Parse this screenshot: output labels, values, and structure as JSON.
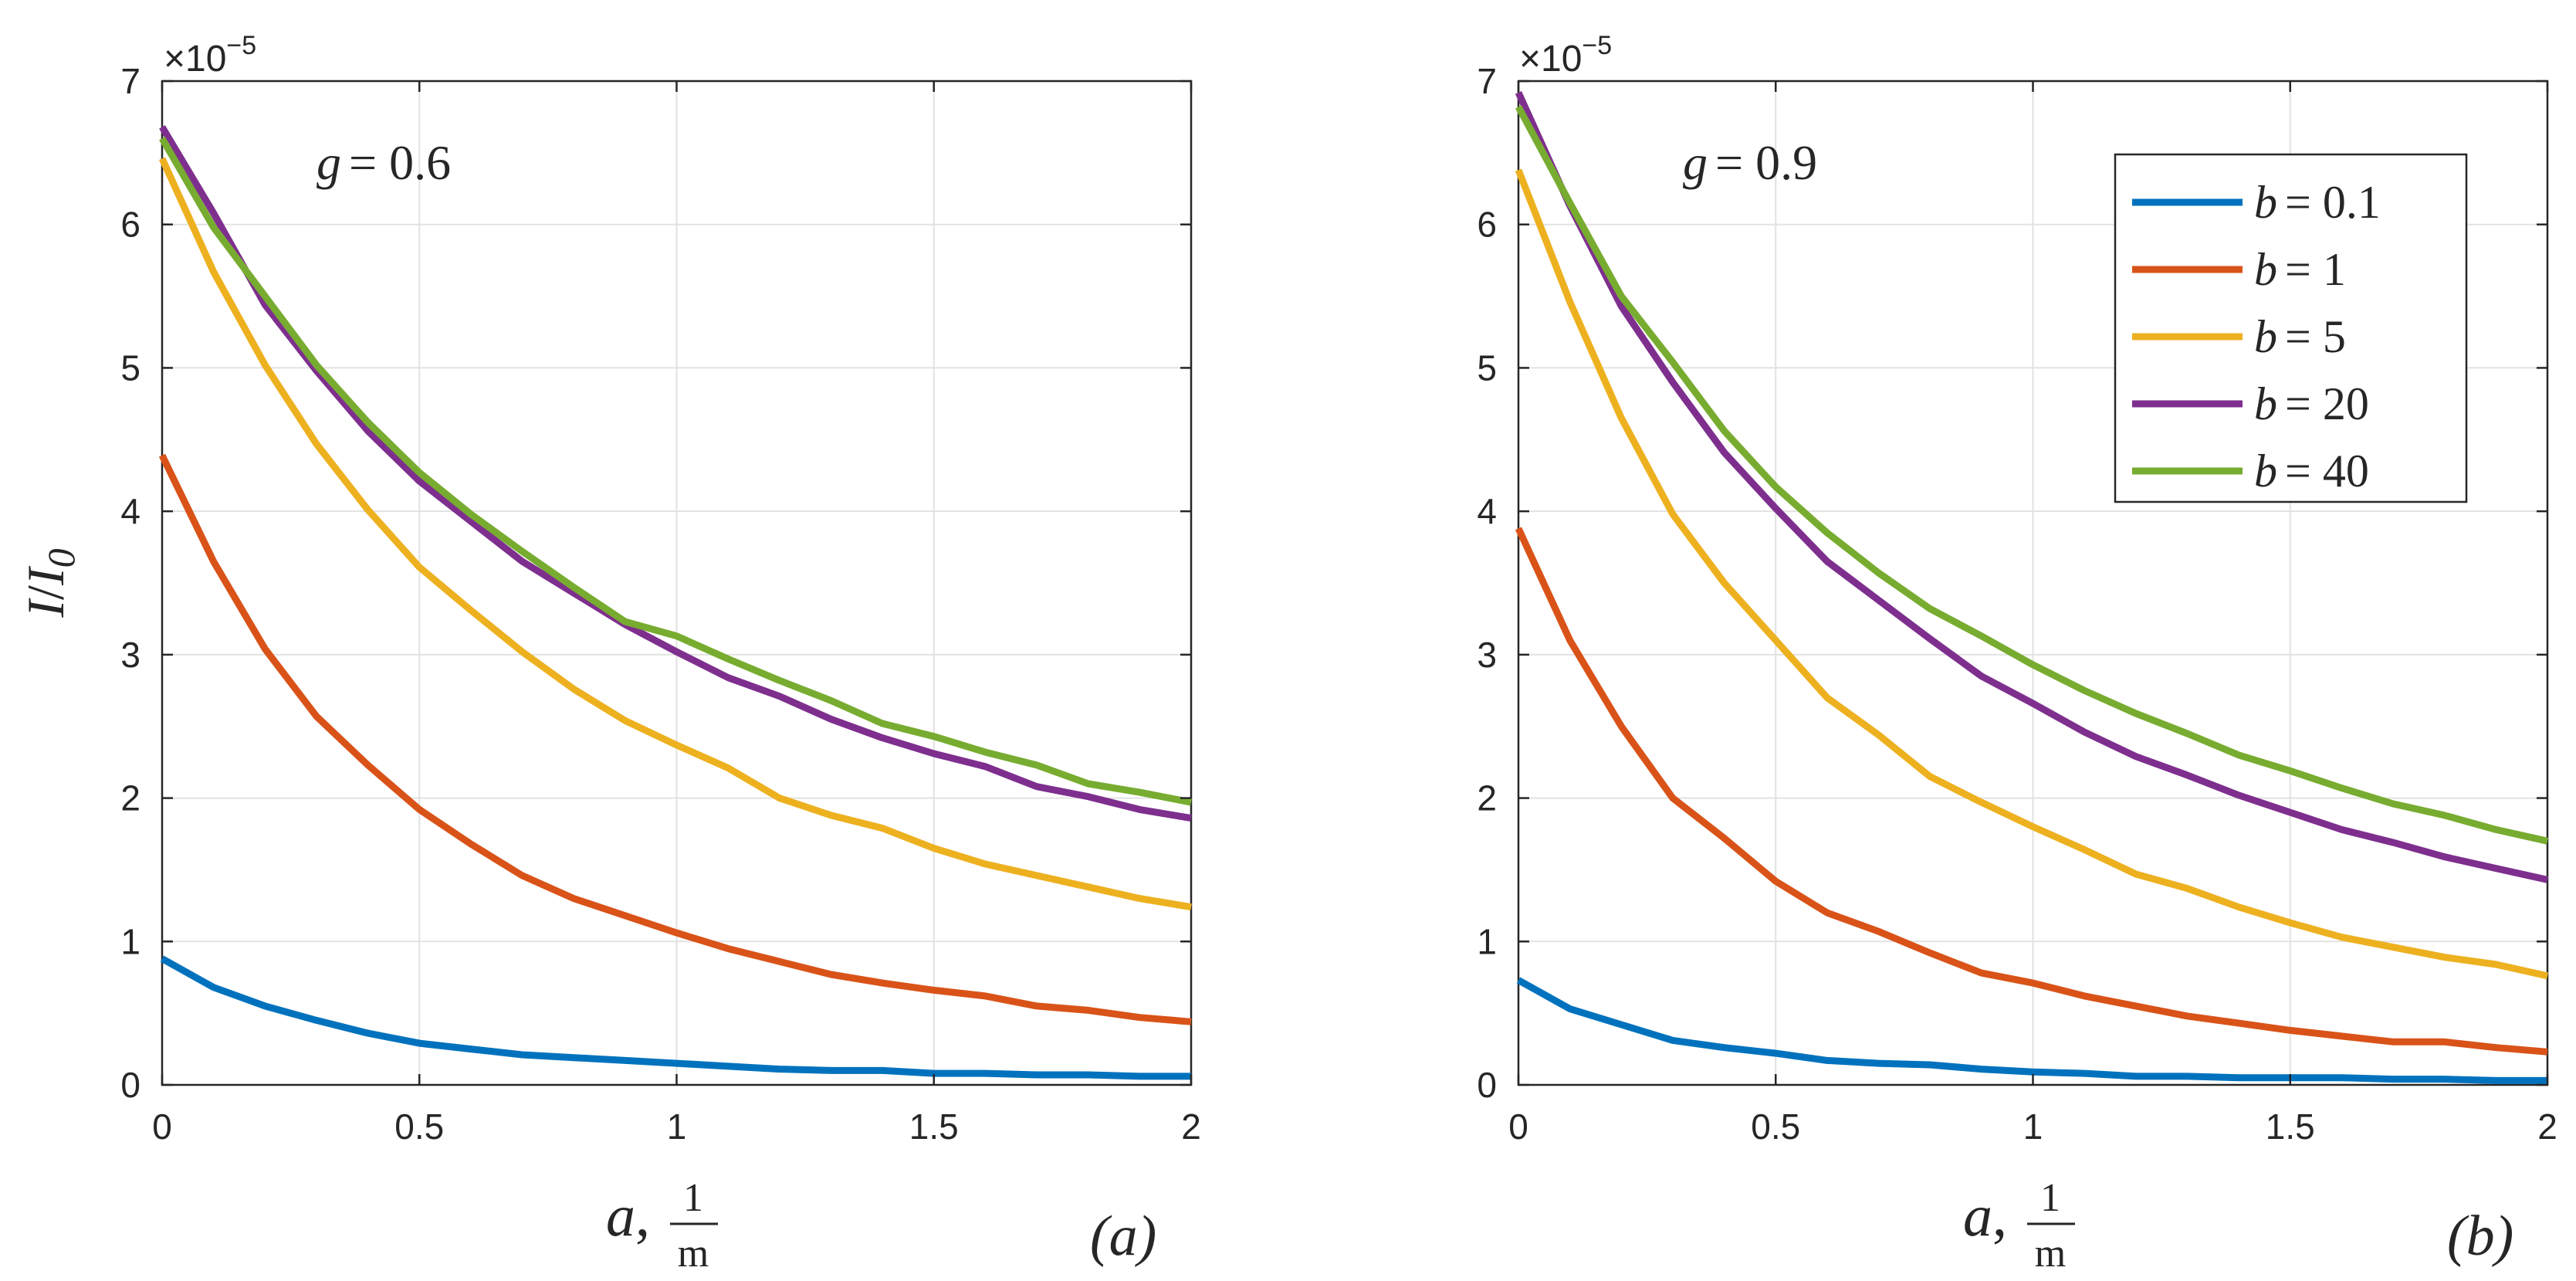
{
  "colors": {
    "b01": "#0072BD",
    "b1": "#D95319",
    "b5": "#EDB120",
    "b20": "#7E2F8E",
    "b40": "#77AC30"
  },
  "chart_data": [
    {
      "type": "line",
      "panel_label": "(a)",
      "annotation": {
        "var": "g",
        "eq": "= 0.6"
      },
      "exponent": {
        "base": "×10",
        "power": "−5"
      },
      "xlabel": {
        "var": "a",
        "sep": ",",
        "num": "1",
        "den": "m"
      },
      "ylabel": {
        "var": "I",
        "slash": "/",
        "sub_var": "I",
        "sub": "0"
      },
      "xlim": [
        0,
        2
      ],
      "ylim": [
        0,
        7
      ],
      "xticks": [
        0,
        0.5,
        1,
        1.5,
        2
      ],
      "xtick_labels": [
        "0",
        "0.5",
        "1",
        "1.5",
        "2"
      ],
      "yticks": [
        0,
        1,
        2,
        3,
        4,
        5,
        6,
        7
      ],
      "ytick_labels": [
        "0",
        "1",
        "2",
        "3",
        "4",
        "5",
        "6",
        "7"
      ],
      "grid": true,
      "x": [
        0,
        0.1,
        0.2,
        0.3,
        0.4,
        0.5,
        0.6,
        0.7,
        0.8,
        0.9,
        1.0,
        1.1,
        1.2,
        1.3,
        1.4,
        1.5,
        1.6,
        1.7,
        1.8,
        1.9,
        2.0
      ],
      "series": [
        {
          "name": "b = 0.1",
          "color_key": "b01",
          "values": [
            0.88,
            0.68,
            0.55,
            0.45,
            0.36,
            0.29,
            0.25,
            0.21,
            0.19,
            0.17,
            0.15,
            0.13,
            0.11,
            0.1,
            0.1,
            0.08,
            0.08,
            0.07,
            0.07,
            0.06,
            0.06
          ]
        },
        {
          "name": "b = 1",
          "color_key": "b1",
          "values": [
            4.39,
            3.65,
            3.04,
            2.57,
            2.23,
            1.92,
            1.68,
            1.46,
            1.3,
            1.18,
            1.06,
            0.95,
            0.86,
            0.77,
            0.71,
            0.66,
            0.62,
            0.55,
            0.52,
            0.47,
            0.44
          ]
        },
        {
          "name": "b = 5",
          "color_key": "b5",
          "values": [
            6.46,
            5.67,
            5.02,
            4.47,
            4.01,
            3.61,
            3.31,
            3.02,
            2.76,
            2.54,
            2.37,
            2.21,
            2.0,
            1.88,
            1.79,
            1.65,
            1.54,
            1.46,
            1.38,
            1.3,
            1.24
          ]
        },
        {
          "name": "b = 20",
          "color_key": "b20",
          "values": [
            6.68,
            6.08,
            5.44,
            4.98,
            4.56,
            4.21,
            3.93,
            3.65,
            3.43,
            3.21,
            3.02,
            2.84,
            2.71,
            2.55,
            2.42,
            2.31,
            2.22,
            2.08,
            2.01,
            1.92,
            1.86
          ]
        },
        {
          "name": "b = 40",
          "color_key": "b40",
          "values": [
            6.6,
            5.98,
            5.5,
            5.02,
            4.62,
            4.27,
            3.98,
            3.72,
            3.47,
            3.23,
            3.13,
            2.97,
            2.82,
            2.68,
            2.52,
            2.43,
            2.32,
            2.23,
            2.1,
            2.04,
            1.97
          ]
        }
      ]
    },
    {
      "type": "line",
      "panel_label": "(b)",
      "annotation": {
        "var": "g",
        "eq": "= 0.9"
      },
      "exponent": {
        "base": "×10",
        "power": "−5"
      },
      "xlabel": {
        "var": "a",
        "sep": ",",
        "num": "1",
        "den": "m"
      },
      "xlim": [
        0,
        2
      ],
      "ylim": [
        0,
        7
      ],
      "xticks": [
        0,
        0.5,
        1,
        1.5,
        2
      ],
      "xtick_labels": [
        "0",
        "0.5",
        "1",
        "1.5",
        "2"
      ],
      "yticks": [
        0,
        1,
        2,
        3,
        4,
        5,
        6,
        7
      ],
      "ytick_labels": [
        "0",
        "1",
        "2",
        "3",
        "4",
        "5",
        "6",
        "7"
      ],
      "grid": true,
      "legend_position": "top-right",
      "x": [
        0,
        0.1,
        0.2,
        0.3,
        0.4,
        0.5,
        0.6,
        0.7,
        0.8,
        0.9,
        1.0,
        1.1,
        1.2,
        1.3,
        1.4,
        1.5,
        1.6,
        1.7,
        1.8,
        1.9,
        2.0
      ],
      "series": [
        {
          "name": "b = 0.1",
          "color_key": "b01",
          "values": [
            0.73,
            0.53,
            0.42,
            0.31,
            0.26,
            0.22,
            0.17,
            0.15,
            0.14,
            0.11,
            0.09,
            0.08,
            0.06,
            0.06,
            0.05,
            0.05,
            0.05,
            0.04,
            0.04,
            0.03,
            0.03
          ]
        },
        {
          "name": "b = 1",
          "color_key": "b1",
          "values": [
            3.88,
            3.1,
            2.5,
            2.0,
            1.72,
            1.42,
            1.2,
            1.07,
            0.92,
            0.78,
            0.71,
            0.62,
            0.55,
            0.48,
            0.43,
            0.38,
            0.34,
            0.3,
            0.3,
            0.26,
            0.23
          ]
        },
        {
          "name": "b = 5",
          "color_key": "b5",
          "values": [
            6.38,
            5.46,
            4.65,
            3.98,
            3.5,
            3.1,
            2.7,
            2.44,
            2.15,
            1.97,
            1.8,
            1.64,
            1.47,
            1.37,
            1.24,
            1.13,
            1.03,
            0.96,
            0.89,
            0.84,
            0.76
          ]
        },
        {
          "name": "b = 20",
          "color_key": "b20",
          "values": [
            6.92,
            6.13,
            5.43,
            4.9,
            4.41,
            4.02,
            3.65,
            3.38,
            3.11,
            2.85,
            2.66,
            2.46,
            2.29,
            2.16,
            2.02,
            1.9,
            1.78,
            1.69,
            1.59,
            1.51,
            1.43
          ]
        },
        {
          "name": "b = 40",
          "color_key": "b40",
          "values": [
            6.82,
            6.15,
            5.5,
            5.04,
            4.56,
            4.17,
            3.85,
            3.57,
            3.32,
            3.13,
            2.93,
            2.75,
            2.59,
            2.45,
            2.3,
            2.19,
            2.07,
            1.96,
            1.88,
            1.78,
            1.7
          ]
        }
      ],
      "legend": [
        {
          "var": "b",
          "eq": "= 0.1",
          "color_key": "b01"
        },
        {
          "var": "b",
          "eq": "= 1",
          "color_key": "b1"
        },
        {
          "var": "b",
          "eq": "= 5",
          "color_key": "b5"
        },
        {
          "var": "b",
          "eq": "= 20",
          "color_key": "b20"
        },
        {
          "var": "b",
          "eq": "= 40",
          "color_key": "b40"
        }
      ]
    }
  ]
}
